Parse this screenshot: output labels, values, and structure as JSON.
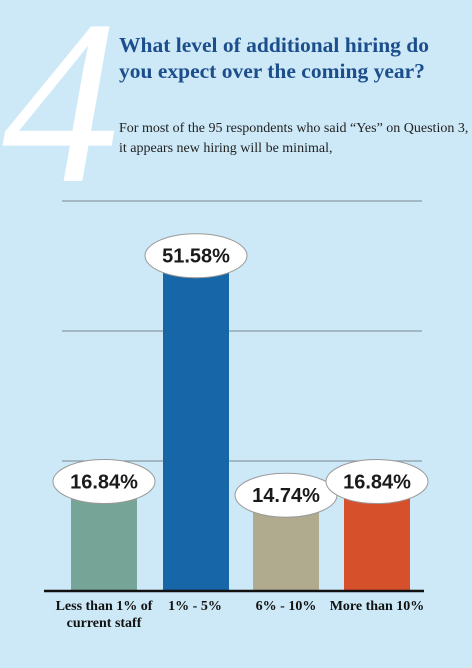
{
  "page_number": "4",
  "title": "What level of additional hiring do you expect over the coming year?",
  "subtitle": "For most of the 95 respondents who said “Yes” on Question 3, it appears new hiring will be minimal,",
  "chart_data": {
    "type": "bar",
    "categories": [
      "Less than 1% of current staff",
      "1% - 5%",
      "6% - 10%",
      "More than 10%"
    ],
    "values": [
      16.84,
      51.58,
      14.74,
      16.84
    ],
    "data_labels": [
      "16.84%",
      "51.58%",
      "14.74%",
      "16.84%"
    ],
    "colors": [
      "#76a597",
      "#1766a8",
      "#b0ab8e",
      "#d7502c"
    ],
    "ylim": [
      0,
      60
    ],
    "gridlines": [
      20,
      40,
      60
    ],
    "grid": true,
    "title": "",
    "xlabel": "",
    "ylabel": ""
  }
}
